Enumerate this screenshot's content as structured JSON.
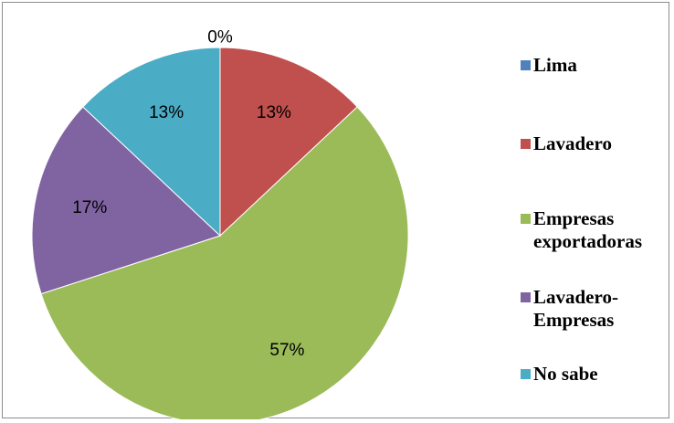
{
  "chart_data": {
    "type": "pie",
    "categories": [
      "Lima",
      "Lavadero",
      "Empresas exportadoras",
      "Lavadero-Empresas",
      "No sabe"
    ],
    "legend_labels": [
      [
        "Lima"
      ],
      [
        "Lavadero"
      ],
      [
        "Empresas",
        "exportadoras"
      ],
      [
        "Lavadero-",
        "Empresas"
      ],
      [
        "No sabe"
      ]
    ],
    "values": [
      0,
      13,
      57,
      17,
      13
    ],
    "data_labels": [
      "0%",
      "13%",
      "57%",
      "17%",
      "13%"
    ],
    "colors": [
      "#4f81bd",
      "#c0504d",
      "#9bbb59",
      "#8064a2",
      "#4bacc6"
    ],
    "legend_position": "right",
    "start_angle": "12 o'clock, clockwise"
  }
}
